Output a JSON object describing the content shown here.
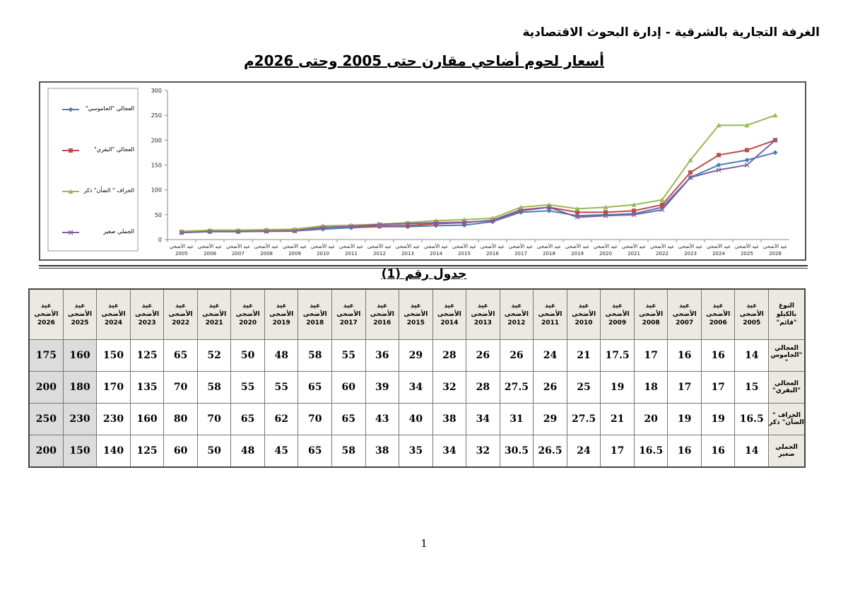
{
  "header": "الغرفة التجارية بالشرقية - إدارة البحوث الاقتصادية",
  "title": "أسعار لحوم أضاحي مقارن حتى 2005 وحتى 2026م",
  "chart_data": {
    "type": "line",
    "categories": [
      "عيد الأضحى\n2005",
      "عيد الأضحى\n2006",
      "عيد الأضحى\n2007",
      "عيد الأضحى\n2008",
      "عيد الأضحى\n2009",
      "عيد الأضحى\n2010",
      "عيد الأضحى\n2011",
      "عيد الأضحى\n2012",
      "عيد الأضحى\n2013",
      "عيد الأضحى\n2014",
      "عيد الأضحى\n2015",
      "عيد الأضحى\n2016",
      "عيد الأضحى\n2017",
      "عيد الأضحى\n2018",
      "عيد الأضحى\n2019",
      "عيد الأضحى\n2020",
      "عيد الأضحى\n2021",
      "عيد الأضحى\n2022",
      "عيد الأضحى\n2023",
      "عيد الأضحى\n2024",
      "عيد الأضحى\n2025",
      "عيد الأضحى\n2026"
    ],
    "series": [
      {
        "name": "العجالي \"الجاموسي\"",
        "color": "#4a7ebb",
        "marker": "diamond",
        "values": [
          14,
          16,
          16,
          17,
          17.5,
          21,
          24,
          26,
          26,
          28,
          29,
          36,
          55,
          58,
          48,
          50,
          52,
          65,
          125,
          150,
          160,
          175
        ]
      },
      {
        "name": "العجالي \"البقري\"",
        "color": "#be4b48",
        "marker": "square",
        "values": [
          15,
          17,
          17,
          18,
          19,
          25,
          26,
          27.5,
          28,
          32,
          34,
          39,
          60,
          65,
          55,
          55,
          58,
          70,
          135,
          170,
          180,
          200
        ]
      },
      {
        "name": "الخراف \" الضأن\" ذكر",
        "color": "#98b954",
        "marker": "triangle",
        "values": [
          16.5,
          19,
          19,
          20,
          21,
          27.5,
          29,
          31,
          34,
          38,
          40,
          43,
          65,
          70,
          62,
          65,
          70,
          80,
          160,
          230,
          230,
          250
        ]
      },
      {
        "name": "الجملي صغير",
        "color": "#7d60a0",
        "marker": "x",
        "values": [
          14,
          16,
          16,
          16.5,
          17,
          24,
          26.5,
          30.5,
          32,
          34,
          35,
          38,
          58,
          65,
          45,
          48,
          50,
          60,
          125,
          140,
          150,
          200
        ]
      }
    ],
    "ylim": [
      0,
      300
    ],
    "yticks": [
      0,
      50,
      100,
      150,
      200,
      250,
      300
    ],
    "grid": false,
    "legend": "left"
  },
  "table": {
    "caption": "جدول رقم (1)",
    "header_label": "النوع بالكيلو \"قائم\"",
    "row_labels": [
      "العجالي \"الجاموس \"",
      "العجالي \"البقري\"",
      "الخراف \" الضأن\" ذكر",
      "الجملي صغير"
    ],
    "shaded_columns": [
      20,
      21
    ]
  },
  "page_number": "1"
}
